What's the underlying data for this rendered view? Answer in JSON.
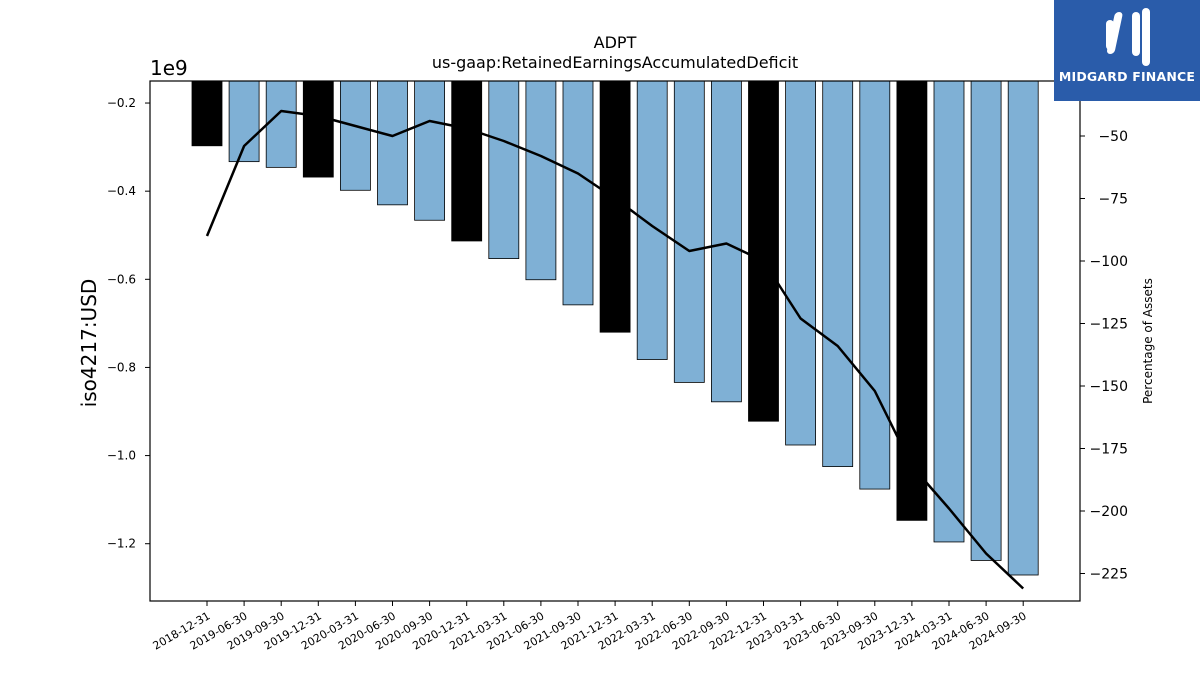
{
  "chart_data": {
    "type": "bar",
    "title": "ADPT",
    "subtitle": "us-gaap:RetainedEarningsAccumulatedDeficit",
    "ylabel": "iso4217:USD",
    "y_offset_label": "1e9",
    "y2label": "Percentage of Assets",
    "categories": [
      "2018-12-31",
      "2019-06-30",
      "2019-09-30",
      "2019-12-31",
      "2020-03-31",
      "2020-06-30",
      "2020-09-30",
      "2020-12-31",
      "2021-03-31",
      "2021-06-30",
      "2021-09-30",
      "2021-12-31",
      "2022-03-31",
      "2022-06-30",
      "2022-09-30",
      "2022-12-31",
      "2023-03-31",
      "2023-06-30",
      "2023-09-30",
      "2023-12-31",
      "2024-03-31",
      "2024-06-30",
      "2024-09-30"
    ],
    "bar_values": [
      -0.297,
      -0.333,
      -0.346,
      -0.368,
      -0.398,
      -0.431,
      -0.466,
      -0.513,
      -0.553,
      -0.601,
      -0.658,
      -0.72,
      -0.782,
      -0.834,
      -0.878,
      -0.922,
      -0.976,
      -1.025,
      -1.076,
      -1.147,
      -1.196,
      -1.238,
      -1.271
    ],
    "bar_colors": [
      "#000000",
      "#7fb0d5",
      "#7fb0d5",
      "#000000",
      "#7fb0d5",
      "#7fb0d5",
      "#7fb0d5",
      "#000000",
      "#7fb0d5",
      "#7fb0d5",
      "#7fb0d5",
      "#000000",
      "#7fb0d5",
      "#7fb0d5",
      "#7fb0d5",
      "#000000",
      "#7fb0d5",
      "#7fb0d5",
      "#7fb0d5",
      "#000000",
      "#7fb0d5",
      "#7fb0d5",
      "#7fb0d5"
    ],
    "line_values": [
      -90,
      -54,
      -40,
      -42,
      -46,
      -50,
      -44,
      -47,
      -52,
      -58,
      -65,
      -75,
      -86,
      -96,
      -93,
      -100,
      -123,
      -134,
      -152,
      -182,
      -199,
      -217,
      -231
    ],
    "ylim": [
      -1.33,
      -0.15
    ],
    "y2lim": [
      -236,
      -28
    ],
    "yticks": [
      -0.2,
      -0.4,
      -0.6,
      -0.8,
      -1.0,
      -1.2
    ],
    "ytick_labels": [
      "−0.2",
      "−0.4",
      "−0.6",
      "−0.8",
      "−1.0",
      "−1.2"
    ],
    "y2ticks": [
      -50,
      -75,
      -100,
      -125,
      -150,
      -175,
      -200,
      -225
    ],
    "y2tick_labels": [
      "−50",
      "−75",
      "−100",
      "−125",
      "−150",
      "−175",
      "−200",
      "−225"
    ],
    "grid": false,
    "legend": "none"
  },
  "logo": {
    "text": "MIDGARD FINANCE",
    "color": "#2a5caa"
  }
}
